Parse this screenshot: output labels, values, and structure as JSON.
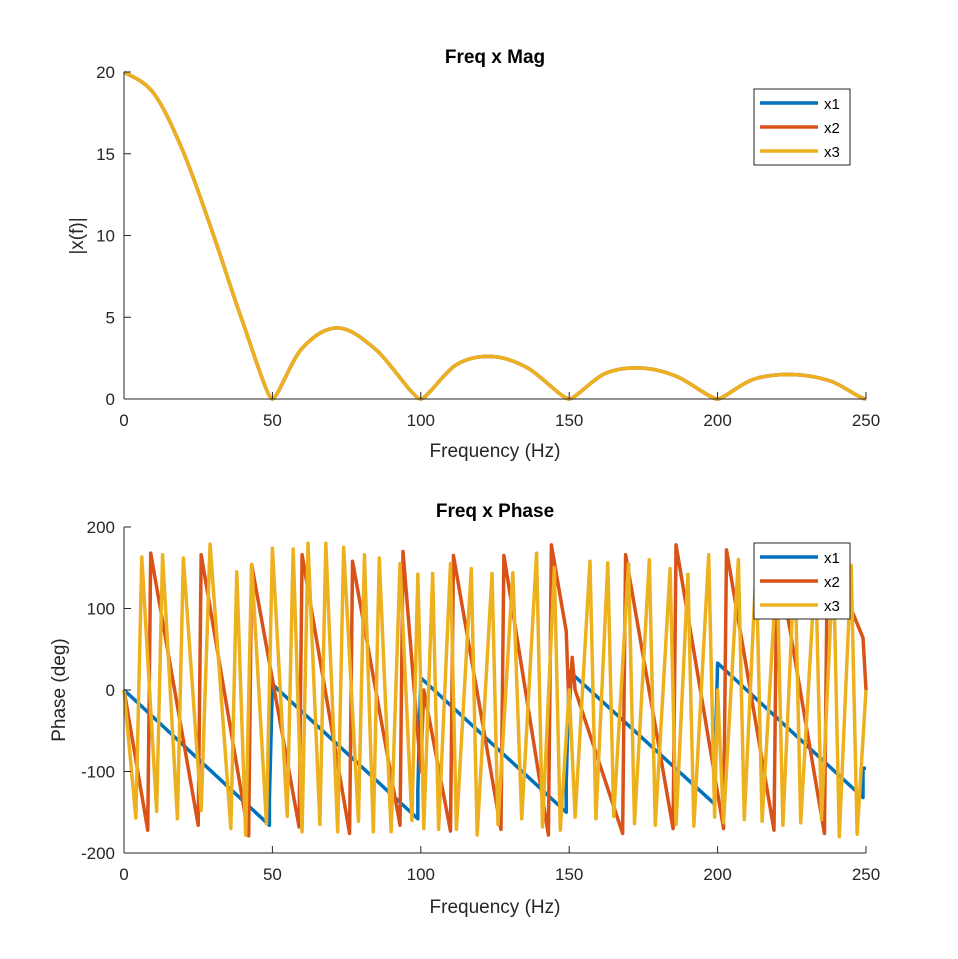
{
  "chart_data": [
    {
      "type": "line",
      "title": "Freq x Mag",
      "xlabel": "Frequency (Hz)",
      "ylabel": "|x(f)|",
      "xlim": [
        0,
        250
      ],
      "ylim": [
        0,
        20
      ],
      "xticks": [
        "0",
        "50",
        "100",
        "150",
        "200",
        "250"
      ],
      "yticks": [
        "0",
        "5",
        "10",
        "15",
        "20"
      ],
      "grid": false,
      "legend_position": "top-right",
      "series": [
        {
          "name": "x1",
          "color": "#0072BD",
          "x": [
            0,
            10,
            20,
            30,
            40,
            50,
            60,
            72,
            85,
            100,
            112,
            124,
            136,
            150,
            162,
            174,
            186,
            200,
            212,
            225,
            238,
            250
          ],
          "y": [
            20,
            18.7,
            15.1,
            10.1,
            4.7,
            0,
            3.1,
            4.35,
            3.0,
            0,
            2.1,
            2.6,
            1.9,
            0,
            1.55,
            1.9,
            1.4,
            0,
            1.2,
            1.5,
            1.1,
            0
          ]
        },
        {
          "name": "x2",
          "color": "#D95319",
          "x": [
            0,
            10,
            20,
            30,
            40,
            50,
            60,
            72,
            85,
            100,
            112,
            124,
            136,
            150,
            162,
            174,
            186,
            200,
            212,
            225,
            238,
            250
          ],
          "y": [
            20,
            18.7,
            15.1,
            10.1,
            4.7,
            0,
            3.1,
            4.35,
            3.0,
            0,
            2.1,
            2.6,
            1.9,
            0,
            1.55,
            1.9,
            1.4,
            0,
            1.2,
            1.5,
            1.1,
            0
          ]
        },
        {
          "name": "x3",
          "color": "#EDB120",
          "x": [
            0,
            10,
            20,
            30,
            40,
            50,
            60,
            72,
            85,
            100,
            112,
            124,
            136,
            150,
            162,
            174,
            186,
            200,
            212,
            225,
            238,
            250
          ],
          "y": [
            20,
            18.7,
            15.1,
            10.1,
            4.7,
            0,
            3.1,
            4.35,
            3.0,
            0,
            2.1,
            2.6,
            1.9,
            0,
            1.55,
            1.9,
            1.4,
            0,
            1.2,
            1.5,
            1.1,
            0
          ]
        }
      ]
    },
    {
      "type": "line",
      "title": "Freq x Phase",
      "xlabel": "Frequency (Hz)",
      "ylabel": "Phase (deg)",
      "xlim": [
        0,
        250
      ],
      "ylim": [
        -200,
        200
      ],
      "xticks": [
        "0",
        "50",
        "100",
        "150",
        "200",
        "250"
      ],
      "yticks": [
        "-200",
        "-100",
        "0",
        "100",
        "200"
      ],
      "grid": false,
      "legend_position": "top-right",
      "series": [
        {
          "name": "x1",
          "color": "#0072BD",
          "x": [
            0,
            49,
            49,
            50,
            99,
            99,
            100,
            149,
            149,
            150,
            199,
            199,
            200,
            249,
            249,
            250
          ],
          "y": [
            0,
            -166,
            -133,
            7,
            -158,
            -124,
            15,
            -150,
            -114,
            23,
            -140,
            -104,
            33,
            -132,
            -96,
            -96
          ]
        },
        {
          "name": "x2",
          "color": "#D95319",
          "x": [
            0,
            8,
            9,
            25,
            26,
            42,
            43,
            59,
            60,
            76,
            77,
            93,
            94,
            100,
            101,
            110,
            111,
            127,
            128,
            143,
            144,
            149,
            150,
            151,
            152,
            168,
            169,
            185,
            186,
            202,
            203,
            219,
            220,
            236,
            237,
            249,
            250
          ],
          "y": [
            0,
            -172,
            168,
            -166,
            166,
            -179,
            154,
            -168,
            166,
            -176,
            158,
            -166,
            170,
            -100,
            0,
            -173,
            165,
            -171,
            165,
            -178,
            178,
            72,
            -29,
            40,
            0,
            -176,
            166,
            -170,
            178,
            -170,
            172,
            -172,
            168,
            -176,
            170,
            64,
            0
          ]
        },
        {
          "name": "x3",
          "color": "#EDB120",
          "x": [
            0,
            4,
            6,
            11,
            13,
            18,
            20,
            26,
            29,
            36,
            38,
            41,
            43,
            48,
            50,
            55,
            57,
            60,
            62,
            66,
            68,
            72,
            74,
            79,
            81,
            84,
            86,
            90,
            93,
            97,
            99,
            100,
            101,
            104,
            106,
            110,
            112,
            117,
            119,
            124,
            126,
            131,
            134,
            139,
            141,
            145,
            147,
            150,
            152,
            157,
            159,
            163,
            165,
            170,
            172,
            177,
            179,
            184,
            186,
            190,
            192,
            197,
            199,
            200,
            202,
            207,
            209,
            213,
            215,
            220,
            222,
            226,
            228,
            233,
            235,
            239,
            241,
            245,
            247,
            250
          ],
          "y": [
            0,
            -157,
            163,
            -149,
            166,
            -158,
            162,
            -148,
            179,
            -170,
            145,
            -178,
            154,
            -164,
            174,
            -155,
            173,
            -174,
            180,
            -165,
            180,
            -174,
            175,
            -161,
            166,
            -174,
            162,
            -174,
            155,
            -160,
            142,
            0,
            -170,
            143,
            -171,
            155,
            -171,
            149,
            -178,
            143,
            -165,
            144,
            -158,
            168,
            -168,
            150,
            -172,
            0,
            -156,
            158,
            -158,
            156,
            -155,
            155,
            -164,
            160,
            -166,
            149,
            -165,
            142,
            -167,
            166,
            -156,
            0,
            -163,
            160,
            -159,
            156,
            -161,
            153,
            -166,
            162,
            -163,
            154,
            -159,
            158,
            -180,
            153,
            -177,
            0
          ]
        }
      ]
    }
  ]
}
